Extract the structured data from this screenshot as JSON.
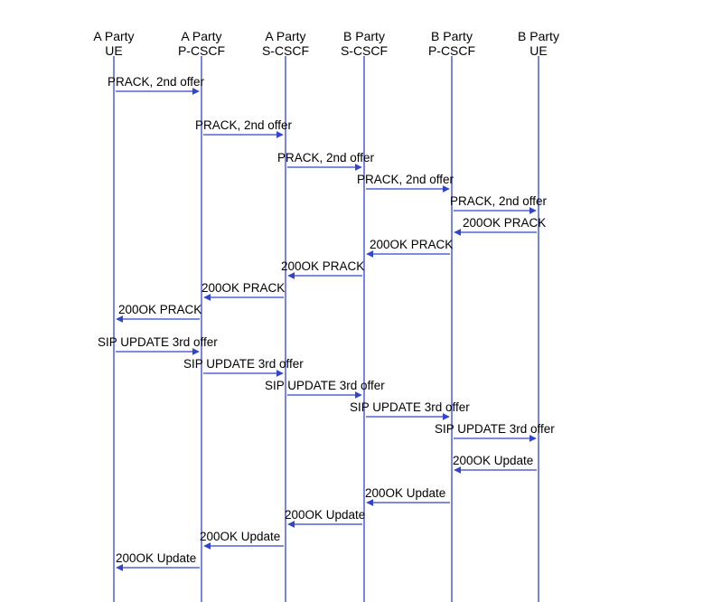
{
  "diagram": {
    "line_color": "#3344cc",
    "text_color": "#000000",
    "lanes": [
      {
        "id": "a-ue",
        "line1": "A Party",
        "line2": "UE"
      },
      {
        "id": "a-pcscf",
        "line1": "A Party",
        "line2": "P-CSCF"
      },
      {
        "id": "a-scscf",
        "line1": "A Party",
        "line2": "S-CSCF"
      },
      {
        "id": "b-scscf",
        "line1": "B Party",
        "line2": "S-CSCF"
      },
      {
        "id": "b-pcscf",
        "line1": "B Party",
        "line2": "P-CSCF"
      },
      {
        "id": "b-ue",
        "line1": "B Party",
        "line2": "UE"
      }
    ],
    "messages": [
      {
        "from": 0,
        "to": 1,
        "label": "PRACK, 2nd offer"
      },
      {
        "from": 1,
        "to": 2,
        "label": "PRACK, 2nd offer"
      },
      {
        "from": 2,
        "to": 3,
        "label": "PRACK, 2nd offer"
      },
      {
        "from": 3,
        "to": 4,
        "label": "PRACK, 2nd offer"
      },
      {
        "from": 4,
        "to": 5,
        "label": "PRACK, 2nd offer"
      },
      {
        "from": 5,
        "to": 4,
        "label": "200OK PRACK"
      },
      {
        "from": 4,
        "to": 3,
        "label": "200OK PRACK"
      },
      {
        "from": 3,
        "to": 2,
        "label": "200OK PRACK"
      },
      {
        "from": 2,
        "to": 1,
        "label": "200OK PRACK"
      },
      {
        "from": 1,
        "to": 0,
        "label": "200OK PRACK"
      },
      {
        "from": 0,
        "to": 1,
        "label": "SIP UPDATE 3rd offer"
      },
      {
        "from": 1,
        "to": 2,
        "label": "SIP UPDATE 3rd offer"
      },
      {
        "from": 2,
        "to": 3,
        "label": "SIP UPDATE 3rd offer"
      },
      {
        "from": 3,
        "to": 4,
        "label": "SIP UPDATE 3rd offer"
      },
      {
        "from": 4,
        "to": 5,
        "label": "SIP UPDATE 3rd offer"
      },
      {
        "from": 5,
        "to": 4,
        "label": "200OK Update"
      },
      {
        "from": 4,
        "to": 3,
        "label": "200OK Update"
      },
      {
        "from": 3,
        "to": 2,
        "label": "200OK Update"
      },
      {
        "from": 2,
        "to": 1,
        "label": "200OK Update"
      },
      {
        "from": 1,
        "to": 0,
        "label": "200OK Update"
      }
    ]
  }
}
